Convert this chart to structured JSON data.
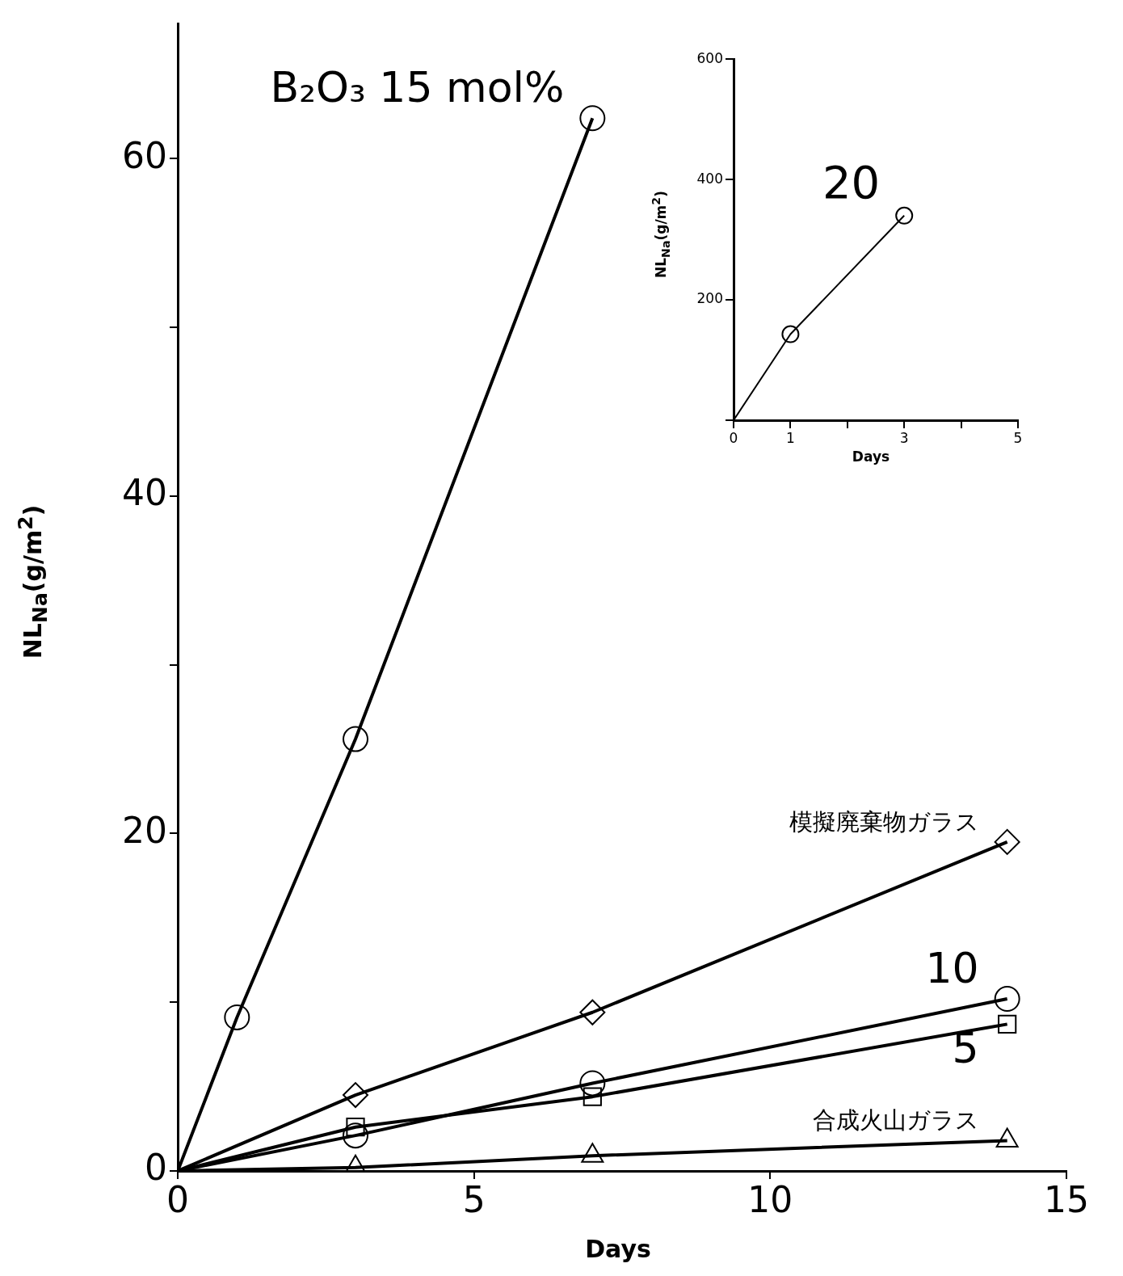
{
  "chart_data": [
    {
      "type": "line",
      "xlabel": "Days",
      "ylabel": "NL$_{Na}$(g/m$^{2}$)",
      "xlim": [
        0,
        15
      ],
      "ylim": [
        0,
        68
      ],
      "xticks": [
        0,
        5,
        10,
        15
      ],
      "yticks": [
        0,
        {
          "value": 10,
          "label": null
        },
        20,
        {
          "value": 30,
          "label": null
        },
        40,
        {
          "value": 50,
          "label": null
        },
        60
      ],
      "grid": false,
      "legend": false,
      "line_style": "solid",
      "series": [
        {
          "name": "B₂O₃ 15 mol%",
          "color": "#000000",
          "marker": "circle",
          "x": [
            0,
            1,
            3,
            7
          ],
          "values": [
            0,
            9.1,
            25.6,
            62.4
          ]
        },
        {
          "name": "模擬廃棄物ガラス",
          "color": "#000000",
          "marker": "diamond",
          "x": [
            0,
            3,
            7,
            14
          ],
          "values": [
            0,
            4.5,
            9.4,
            19.5
          ]
        },
        {
          "name": "10",
          "color": "#000000",
          "marker": "circle",
          "x": [
            0,
            3,
            7,
            14
          ],
          "values": [
            0,
            2.1,
            5.2,
            10.2
          ]
        },
        {
          "name": "5",
          "color": "#000000",
          "marker": "square",
          "x": [
            0,
            3,
            7,
            14
          ],
          "values": [
            0,
            2.6,
            4.4,
            8.7
          ]
        },
        {
          "name": "合成火山ガラス",
          "color": "#000000",
          "marker": "triangle",
          "x": [
            0,
            3,
            7,
            14
          ],
          "values": [
            0,
            0.2,
            0.9,
            1.8
          ]
        }
      ]
    },
    {
      "type": "line",
      "xlabel": "Days",
      "ylabel": "NL$_{Na}$(g/m$^{2}$)",
      "xlim": [
        0,
        5
      ],
      "ylim": [
        0,
        600
      ],
      "xticks": [
        0,
        1,
        {
          "value": 2,
          "label": null
        },
        3,
        {
          "value": 4,
          "label": null
        },
        5
      ],
      "yticks": [
        {
          "value": 0,
          "label": null
        },
        200,
        400,
        600
      ],
      "grid": false,
      "legend": false,
      "line_style": "solid",
      "series": [
        {
          "name": "20",
          "color": "#000000",
          "marker": "circle",
          "x": [
            0,
            1,
            3
          ],
          "values": [
            0,
            143,
            340
          ]
        }
      ]
    }
  ]
}
